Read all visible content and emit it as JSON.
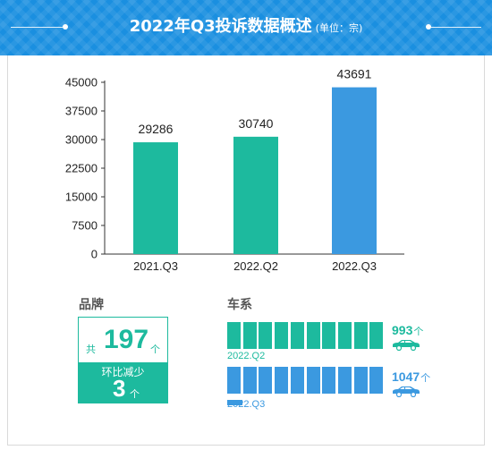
{
  "header": {
    "title": "2022年Q3投诉数据概述",
    "unit": "(单位：宗)"
  },
  "colors": {
    "header_blue": "#1a8fe0",
    "teal": "#1dba9e",
    "blue": "#3b99e0"
  },
  "chart_data": {
    "type": "bar",
    "categories": [
      "2021.Q3",
      "2022.Q2",
      "2022.Q3"
    ],
    "values": [
      29286,
      30740,
      43691
    ],
    "bar_colors": [
      "#1dba9e",
      "#1dba9e",
      "#3b99e0"
    ],
    "yticks": [
      "0",
      "7500",
      "15000",
      "22500",
      "30000",
      "37500",
      "45000"
    ],
    "ylim": [
      0,
      45000
    ],
    "grid": false
  },
  "brand": {
    "title": "品牌",
    "total_prefix": "共",
    "total": "197",
    "total_unit": "个",
    "change_label": "环比减少",
    "change": "3",
    "change_unit": "个"
  },
  "series": {
    "title": "车系",
    "rows": [
      {
        "period": "2022.Q2",
        "value": "993",
        "unit": "个",
        "color": "#1dba9e",
        "full_segments": 10
      },
      {
        "period": "2022.Q3",
        "value": "1047",
        "unit": "个",
        "color": "#3b99e0",
        "full_segments": 10,
        "extra_fraction": 0.055
      }
    ]
  }
}
